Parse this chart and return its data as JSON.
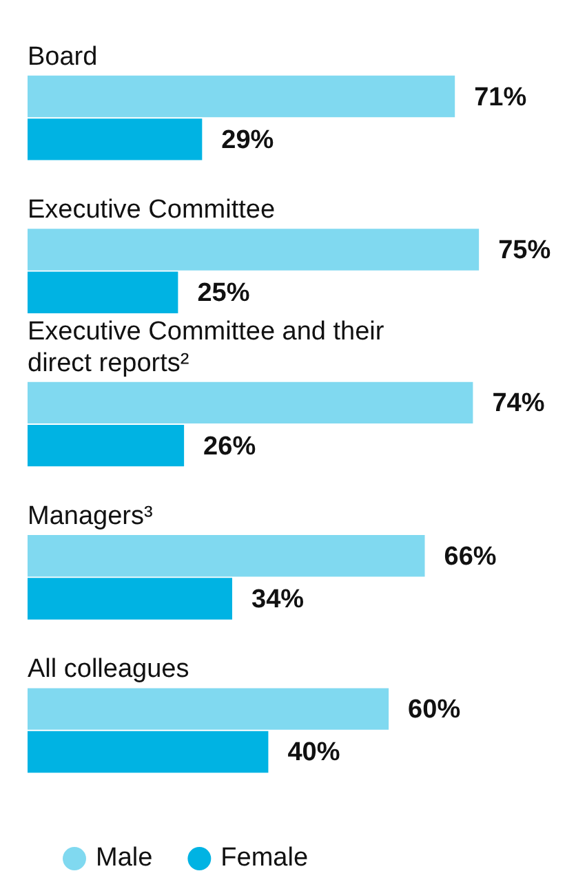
{
  "chart_data": {
    "type": "bar",
    "orientation": "horizontal",
    "legend": "bottom",
    "categories": [
      "Board",
      "Executive Committee",
      "Executive Committee and their direct reports²",
      "Managers³",
      "All colleagues"
    ],
    "series": [
      {
        "name": "Male",
        "color": "#80d9f0",
        "values": [
          71,
          75,
          74,
          66,
          60
        ],
        "value_labels": [
          "71%",
          "75%",
          "74%",
          "66%",
          "60%"
        ]
      },
      {
        "name": "Female",
        "color": "#00b3e3",
        "values": [
          29,
          25,
          26,
          34,
          40
        ],
        "value_labels": [
          "29%",
          "25%",
          "26%",
          "34%",
          "40%"
        ]
      }
    ]
  }
}
